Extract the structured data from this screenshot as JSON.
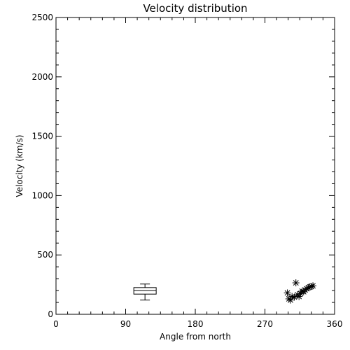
{
  "chart_data": {
    "type": "scatter",
    "title": "Velocity distribution",
    "xlabel": "Angle from north",
    "ylabel": "Velocity (km/s)",
    "xlim": [
      0,
      360
    ],
    "ylim": [
      0,
      2500
    ],
    "x_ticks": [
      0,
      90,
      180,
      270,
      360
    ],
    "y_ticks": [
      0,
      500,
      1000,
      1500,
      2000,
      2500
    ],
    "x_tick_labels": [
      "0",
      "90",
      "180",
      "270",
      "360"
    ],
    "y_tick_labels": [
      "0",
      "500",
      "1000",
      "1500",
      "2000",
      "2500"
    ],
    "grid": false,
    "boxplot": {
      "x": 115,
      "min": 120,
      "q1": 170,
      "median": 200,
      "q3": 225,
      "max": 255
    },
    "points": [
      {
        "x": 299,
        "y": 180
      },
      {
        "x": 301,
        "y": 130
      },
      {
        "x": 303,
        "y": 120
      },
      {
        "x": 305,
        "y": 150
      },
      {
        "x": 308,
        "y": 145
      },
      {
        "x": 310,
        "y": 265
      },
      {
        "x": 312,
        "y": 165
      },
      {
        "x": 314,
        "y": 150
      },
      {
        "x": 316,
        "y": 175
      },
      {
        "x": 318,
        "y": 195
      },
      {
        "x": 320,
        "y": 190
      },
      {
        "x": 322,
        "y": 205
      },
      {
        "x": 324,
        "y": 215
      },
      {
        "x": 326,
        "y": 225
      },
      {
        "x": 328,
        "y": 230
      },
      {
        "x": 330,
        "y": 235
      },
      {
        "x": 332,
        "y": 240
      }
    ]
  }
}
